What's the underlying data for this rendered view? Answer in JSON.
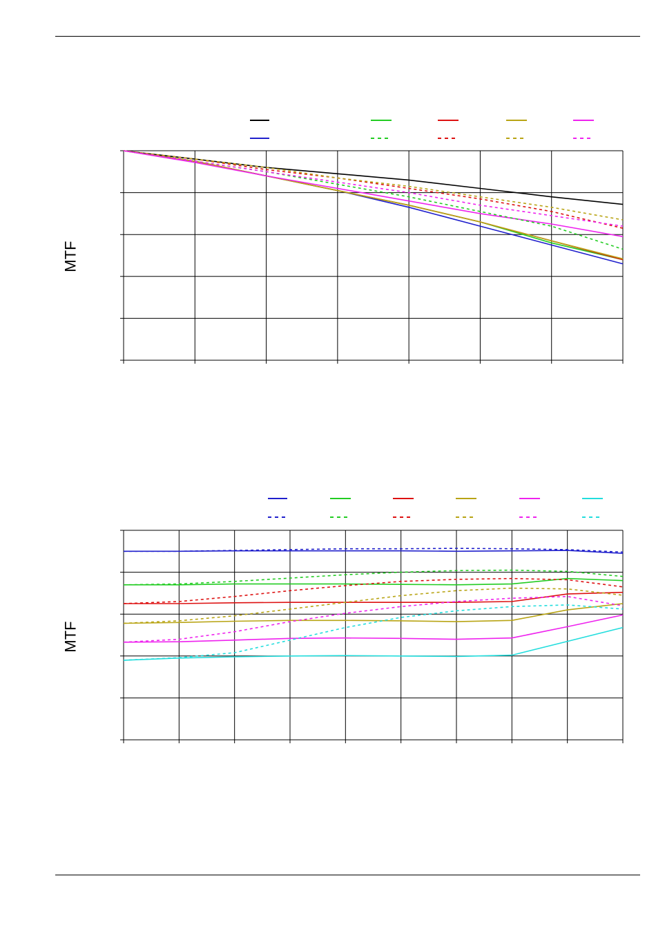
{
  "chart_data": [
    {
      "type": "line",
      "ylabel": "MTF",
      "xlim": [
        0,
        7
      ],
      "ylim": [
        0,
        5
      ],
      "x_ticks": [
        0,
        1,
        2,
        3,
        4,
        5,
        6,
        7
      ],
      "y_grid": [
        0,
        1,
        2,
        3,
        4,
        5
      ],
      "grid": true,
      "legend": "top",
      "series": [
        {
          "color": "#000000",
          "dashed": false,
          "x": [
            0,
            1,
            2,
            3,
            4,
            5,
            6,
            7
          ],
          "y": [
            5.0,
            4.8,
            4.6,
            4.45,
            4.3,
            4.1,
            3.9,
            3.72
          ]
        },
        {
          "color": "#1f1fcc",
          "dashed": false,
          "x": [
            0,
            1,
            2,
            3,
            4,
            5,
            6,
            7
          ],
          "y": [
            5.0,
            4.75,
            4.4,
            4.05,
            3.65,
            3.2,
            2.75,
            2.3
          ]
        },
        {
          "color": "#22cc22",
          "dashed": false,
          "x": [
            0,
            1,
            2,
            3,
            4,
            5,
            6,
            7
          ],
          "y": [
            5.0,
            4.75,
            4.4,
            4.05,
            3.7,
            3.3,
            2.8,
            2.4
          ]
        },
        {
          "color": "#dd1111",
          "dashed": false,
          "x": [
            0,
            1,
            2,
            3,
            4,
            5,
            6,
            7
          ],
          "y": [
            5.0,
            4.75,
            4.4,
            4.05,
            3.7,
            3.3,
            2.85,
            2.4
          ]
        },
        {
          "color": "#b8a414",
          "dashed": false,
          "x": [
            0,
            1,
            2,
            3,
            4,
            5,
            6,
            7
          ],
          "y": [
            5.0,
            4.75,
            4.4,
            4.05,
            3.7,
            3.3,
            2.85,
            2.42
          ]
        },
        {
          "color": "#ee22ee",
          "dashed": false,
          "x": [
            0,
            1,
            2,
            3,
            4,
            5,
            6,
            7
          ],
          "y": [
            5.0,
            4.72,
            4.4,
            4.1,
            3.8,
            3.5,
            3.25,
            2.95
          ]
        },
        {
          "color": "#22cc22",
          "dashed": true,
          "x": [
            0,
            1,
            2,
            3,
            4,
            5,
            6,
            7
          ],
          "y": [
            5.0,
            4.75,
            4.5,
            4.2,
            3.9,
            3.55,
            3.2,
            2.65
          ]
        },
        {
          "color": "#dd1111",
          "dashed": true,
          "x": [
            0,
            1,
            2,
            3,
            4,
            5,
            6,
            7
          ],
          "y": [
            5.0,
            4.8,
            4.55,
            4.35,
            4.1,
            3.85,
            3.55,
            3.15
          ]
        },
        {
          "color": "#b8a414",
          "dashed": true,
          "x": [
            0,
            1,
            2,
            3,
            4,
            5,
            6,
            7
          ],
          "y": [
            5.0,
            4.8,
            4.6,
            4.35,
            4.15,
            3.9,
            3.65,
            3.35
          ]
        },
        {
          "color": "#ee22ee",
          "dashed": true,
          "x": [
            0,
            1,
            2,
            3,
            4,
            5,
            6,
            7
          ],
          "y": [
            5.0,
            4.75,
            4.5,
            4.25,
            4.0,
            3.7,
            3.45,
            3.2
          ]
        }
      ]
    },
    {
      "type": "line",
      "ylabel": "MTF",
      "xlim": [
        0,
        9
      ],
      "ylim": [
        0,
        5
      ],
      "x_ticks": [
        0,
        1,
        2,
        3,
        4,
        5,
        6,
        7,
        8,
        9
      ],
      "y_grid": [
        0,
        1,
        2,
        3,
        4,
        5
      ],
      "grid": true,
      "legend": "top",
      "series": [
        {
          "color": "#1f1fcc",
          "dashed": false,
          "x": [
            0,
            1,
            2,
            3,
            4,
            5,
            6,
            7,
            8,
            9
          ],
          "y": [
            4.5,
            4.5,
            4.51,
            4.51,
            4.51,
            4.51,
            4.5,
            4.51,
            4.52,
            4.45
          ]
        },
        {
          "color": "#22cc22",
          "dashed": false,
          "x": [
            0,
            1,
            2,
            3,
            4,
            5,
            6,
            7,
            8,
            9
          ],
          "y": [
            3.7,
            3.7,
            3.72,
            3.72,
            3.72,
            3.71,
            3.7,
            3.72,
            3.85,
            3.8
          ]
        },
        {
          "color": "#dd1111",
          "dashed": false,
          "x": [
            0,
            1,
            2,
            3,
            4,
            5,
            6,
            7,
            8,
            9
          ],
          "y": [
            3.25,
            3.25,
            3.27,
            3.28,
            3.28,
            3.28,
            3.28,
            3.3,
            3.48,
            3.52
          ]
        },
        {
          "color": "#b8a414",
          "dashed": false,
          "x": [
            0,
            1,
            2,
            3,
            4,
            5,
            6,
            7,
            8,
            9
          ],
          "y": [
            2.78,
            2.8,
            2.83,
            2.85,
            2.85,
            2.84,
            2.82,
            2.85,
            3.1,
            3.25
          ]
        },
        {
          "color": "#ee22ee",
          "dashed": false,
          "x": [
            0,
            1,
            2,
            3,
            4,
            5,
            6,
            7,
            8,
            9
          ],
          "y": [
            2.33,
            2.34,
            2.38,
            2.42,
            2.43,
            2.42,
            2.4,
            2.43,
            2.7,
            2.98
          ]
        },
        {
          "color": "#22dddd",
          "dashed": false,
          "x": [
            0,
            1,
            2,
            3,
            4,
            5,
            6,
            7,
            8,
            9
          ],
          "y": [
            1.9,
            1.95,
            1.98,
            2.0,
            2.01,
            2.0,
            1.99,
            2.02,
            2.35,
            2.68
          ]
        },
        {
          "color": "#1f1fcc",
          "dashed": true,
          "x": [
            0,
            1,
            2,
            3,
            4,
            5,
            6,
            7,
            8,
            9
          ],
          "y": [
            4.5,
            4.5,
            4.52,
            4.54,
            4.56,
            4.56,
            4.57,
            4.56,
            4.54,
            4.48
          ]
        },
        {
          "color": "#22cc22",
          "dashed": true,
          "x": [
            0,
            1,
            2,
            3,
            4,
            5,
            6,
            7,
            8,
            9
          ],
          "y": [
            3.7,
            3.72,
            3.78,
            3.86,
            3.94,
            4.0,
            4.04,
            4.05,
            4.02,
            3.9
          ]
        },
        {
          "color": "#dd1111",
          "dashed": true,
          "x": [
            0,
            1,
            2,
            3,
            4,
            5,
            6,
            7,
            8,
            9
          ],
          "y": [
            3.25,
            3.3,
            3.42,
            3.56,
            3.68,
            3.78,
            3.83,
            3.85,
            3.82,
            3.65
          ]
        },
        {
          "color": "#b8a414",
          "dashed": true,
          "x": [
            0,
            1,
            2,
            3,
            4,
            5,
            6,
            7,
            8,
            9
          ],
          "y": [
            2.78,
            2.84,
            2.96,
            3.12,
            3.28,
            3.44,
            3.56,
            3.62,
            3.6,
            3.45
          ]
        },
        {
          "color": "#ee22ee",
          "dashed": true,
          "x": [
            0,
            1,
            2,
            3,
            4,
            5,
            6,
            7,
            8,
            9
          ],
          "y": [
            2.33,
            2.4,
            2.58,
            2.82,
            3.02,
            3.18,
            3.3,
            3.38,
            3.42,
            3.2
          ]
        },
        {
          "color": "#22dddd",
          "dashed": true,
          "x": [
            0,
            1,
            2,
            3,
            4,
            5,
            6,
            7,
            8,
            9
          ],
          "y": [
            1.9,
            1.96,
            2.08,
            2.38,
            2.68,
            2.92,
            3.08,
            3.18,
            3.22,
            3.12
          ]
        }
      ]
    }
  ]
}
